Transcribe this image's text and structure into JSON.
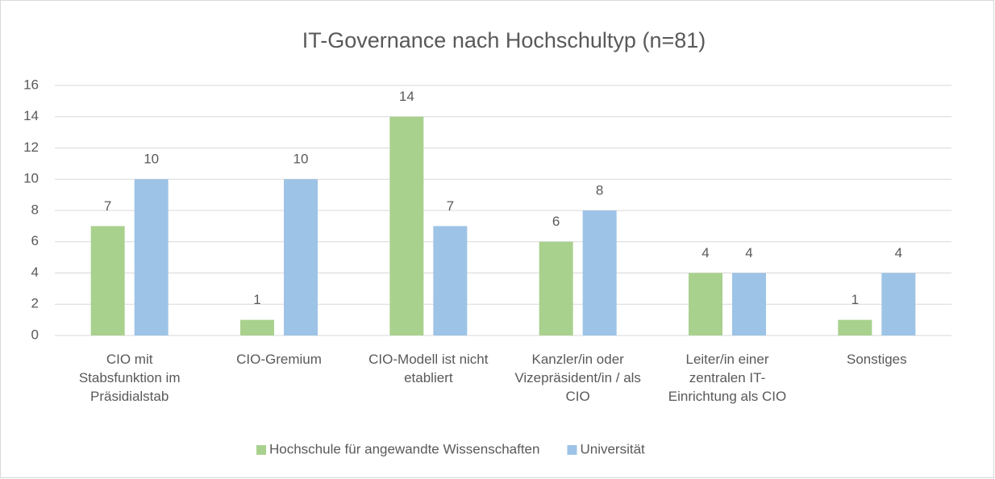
{
  "chart_data": {
    "type": "bar",
    "title": "IT-Governance nach Hochschultyp (n=81)",
    "categories": [
      "CIO mit Stabsfunktion im Präsidialstab",
      "CIO-Gremium",
      "CIO-Modell ist nicht etabliert",
      "Kanzler/in oder Vizepräsident/in / als CIO",
      "Leiter/in einer zentralen IT-Einrichtung als CIO",
      "Sonstiges"
    ],
    "series": [
      {
        "name": "Hochschule für angewandte Wissenschaften",
        "color": "#a9d18e",
        "values": [
          7,
          1,
          14,
          6,
          4,
          1
        ]
      },
      {
        "name": "Universität",
        "color": "#9dc3e6",
        "values": [
          10,
          10,
          7,
          8,
          4,
          4
        ]
      }
    ],
    "ylim": [
      0,
      16
    ],
    "yticks": [
      0,
      2,
      4,
      6,
      8,
      10,
      12,
      14,
      16
    ],
    "grid": true,
    "legend": "bottom"
  }
}
